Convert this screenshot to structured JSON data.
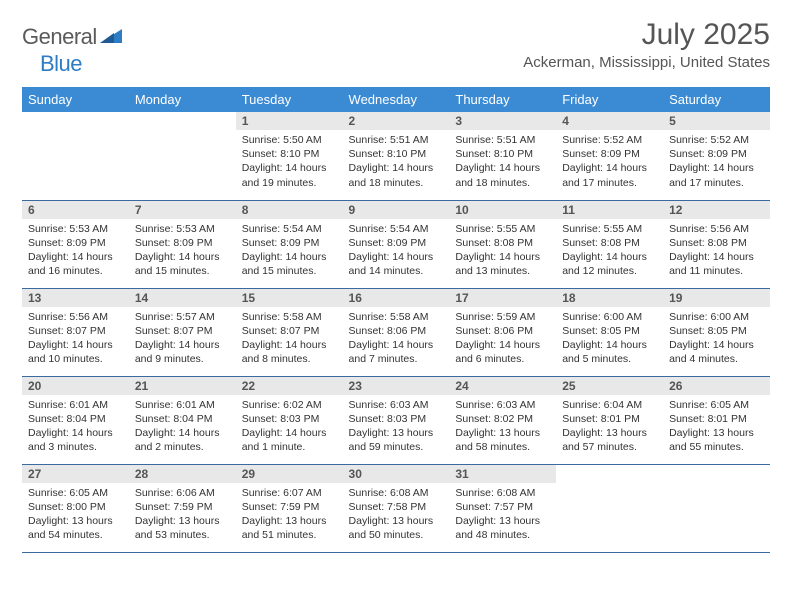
{
  "brand": {
    "part1": "General",
    "part2": "Blue"
  },
  "title": "July 2025",
  "location": "Ackerman, Mississippi, United States",
  "colors": {
    "header_bg": "#3b8bd4",
    "header_text": "#ffffff",
    "daynum_bg": "#e8e8e8",
    "daynum_text": "#555555",
    "body_text": "#333333",
    "rule": "#3b6a9e",
    "brand_gray": "#5a5a5a",
    "brand_blue": "#2d7dc4"
  },
  "day_names": [
    "Sunday",
    "Monday",
    "Tuesday",
    "Wednesday",
    "Thursday",
    "Friday",
    "Saturday"
  ],
  "weeks": [
    [
      null,
      null,
      {
        "n": "1",
        "sr": "5:50 AM",
        "ss": "8:10 PM",
        "dl": "14 hours and 19 minutes."
      },
      {
        "n": "2",
        "sr": "5:51 AM",
        "ss": "8:10 PM",
        "dl": "14 hours and 18 minutes."
      },
      {
        "n": "3",
        "sr": "5:51 AM",
        "ss": "8:10 PM",
        "dl": "14 hours and 18 minutes."
      },
      {
        "n": "4",
        "sr": "5:52 AM",
        "ss": "8:09 PM",
        "dl": "14 hours and 17 minutes."
      },
      {
        "n": "5",
        "sr": "5:52 AM",
        "ss": "8:09 PM",
        "dl": "14 hours and 17 minutes."
      }
    ],
    [
      {
        "n": "6",
        "sr": "5:53 AM",
        "ss": "8:09 PM",
        "dl": "14 hours and 16 minutes."
      },
      {
        "n": "7",
        "sr": "5:53 AM",
        "ss": "8:09 PM",
        "dl": "14 hours and 15 minutes."
      },
      {
        "n": "8",
        "sr": "5:54 AM",
        "ss": "8:09 PM",
        "dl": "14 hours and 15 minutes."
      },
      {
        "n": "9",
        "sr": "5:54 AM",
        "ss": "8:09 PM",
        "dl": "14 hours and 14 minutes."
      },
      {
        "n": "10",
        "sr": "5:55 AM",
        "ss": "8:08 PM",
        "dl": "14 hours and 13 minutes."
      },
      {
        "n": "11",
        "sr": "5:55 AM",
        "ss": "8:08 PM",
        "dl": "14 hours and 12 minutes."
      },
      {
        "n": "12",
        "sr": "5:56 AM",
        "ss": "8:08 PM",
        "dl": "14 hours and 11 minutes."
      }
    ],
    [
      {
        "n": "13",
        "sr": "5:56 AM",
        "ss": "8:07 PM",
        "dl": "14 hours and 10 minutes."
      },
      {
        "n": "14",
        "sr": "5:57 AM",
        "ss": "8:07 PM",
        "dl": "14 hours and 9 minutes."
      },
      {
        "n": "15",
        "sr": "5:58 AM",
        "ss": "8:07 PM",
        "dl": "14 hours and 8 minutes."
      },
      {
        "n": "16",
        "sr": "5:58 AM",
        "ss": "8:06 PM",
        "dl": "14 hours and 7 minutes."
      },
      {
        "n": "17",
        "sr": "5:59 AM",
        "ss": "8:06 PM",
        "dl": "14 hours and 6 minutes."
      },
      {
        "n": "18",
        "sr": "6:00 AM",
        "ss": "8:05 PM",
        "dl": "14 hours and 5 minutes."
      },
      {
        "n": "19",
        "sr": "6:00 AM",
        "ss": "8:05 PM",
        "dl": "14 hours and 4 minutes."
      }
    ],
    [
      {
        "n": "20",
        "sr": "6:01 AM",
        "ss": "8:04 PM",
        "dl": "14 hours and 3 minutes."
      },
      {
        "n": "21",
        "sr": "6:01 AM",
        "ss": "8:04 PM",
        "dl": "14 hours and 2 minutes."
      },
      {
        "n": "22",
        "sr": "6:02 AM",
        "ss": "8:03 PM",
        "dl": "14 hours and 1 minute."
      },
      {
        "n": "23",
        "sr": "6:03 AM",
        "ss": "8:03 PM",
        "dl": "13 hours and 59 minutes."
      },
      {
        "n": "24",
        "sr": "6:03 AM",
        "ss": "8:02 PM",
        "dl": "13 hours and 58 minutes."
      },
      {
        "n": "25",
        "sr": "6:04 AM",
        "ss": "8:01 PM",
        "dl": "13 hours and 57 minutes."
      },
      {
        "n": "26",
        "sr": "6:05 AM",
        "ss": "8:01 PM",
        "dl": "13 hours and 55 minutes."
      }
    ],
    [
      {
        "n": "27",
        "sr": "6:05 AM",
        "ss": "8:00 PM",
        "dl": "13 hours and 54 minutes."
      },
      {
        "n": "28",
        "sr": "6:06 AM",
        "ss": "7:59 PM",
        "dl": "13 hours and 53 minutes."
      },
      {
        "n": "29",
        "sr": "6:07 AM",
        "ss": "7:59 PM",
        "dl": "13 hours and 51 minutes."
      },
      {
        "n": "30",
        "sr": "6:08 AM",
        "ss": "7:58 PM",
        "dl": "13 hours and 50 minutes."
      },
      {
        "n": "31",
        "sr": "6:08 AM",
        "ss": "7:57 PM",
        "dl": "13 hours and 48 minutes."
      },
      null,
      null
    ]
  ],
  "labels": {
    "sunrise": "Sunrise:",
    "sunset": "Sunset:",
    "daylight": "Daylight:"
  }
}
